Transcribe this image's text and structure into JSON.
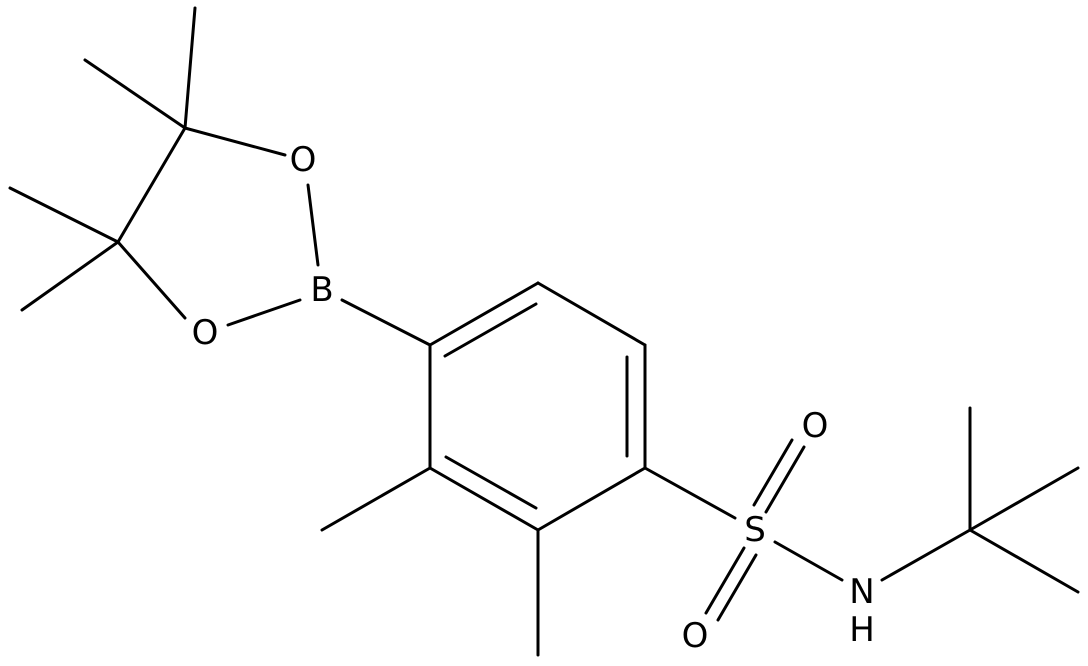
{
  "atoms": {
    "o_top": "O",
    "b": "B",
    "o_bottom": "O",
    "s": "S",
    "so_top": "O",
    "so_bottom": "O",
    "n": "N",
    "h": "H"
  }
}
